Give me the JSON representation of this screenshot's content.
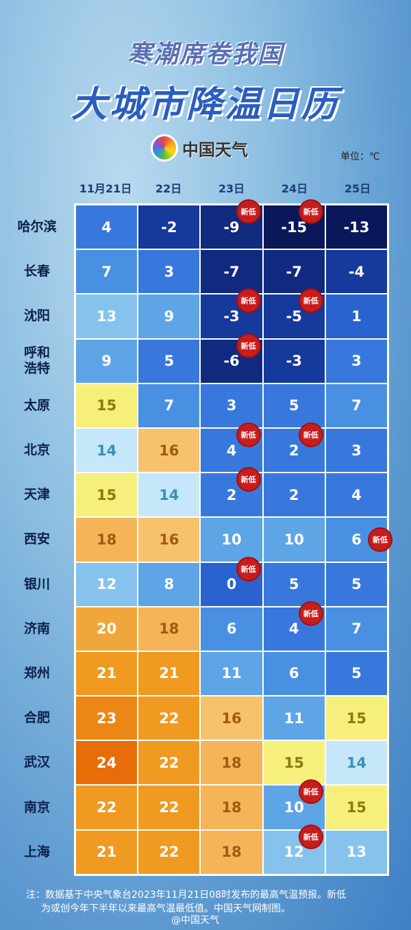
{
  "title_line1": "寒潮席卷我国",
  "title_line2": "大城市降温日历",
  "logo_text": "中国天气",
  "unit": "单位：℃",
  "dates": [
    "11月21日",
    "22日",
    "23日",
    "24日",
    "25日"
  ],
  "badge_label": "新低",
  "rows": [
    {
      "city": "哈尔滨",
      "temps": [
        4,
        -2,
        -9,
        -15,
        -13
      ],
      "new_low": [
        false,
        false,
        true,
        true,
        false
      ]
    },
    {
      "city": "长春",
      "temps": [
        7,
        3,
        -7,
        -7,
        -4
      ],
      "new_low": [
        false,
        false,
        false,
        false,
        false
      ]
    },
    {
      "city": "沈阳",
      "temps": [
        13,
        9,
        -3,
        -5,
        1
      ],
      "new_low": [
        false,
        false,
        true,
        true,
        false
      ]
    },
    {
      "city": "呼和浩特",
      "temps": [
        9,
        5,
        -6,
        -3,
        3
      ],
      "new_low": [
        false,
        false,
        true,
        false,
        false
      ]
    },
    {
      "city": "太原",
      "temps": [
        15,
        7,
        3,
        5,
        7
      ],
      "new_low": [
        false,
        false,
        false,
        false,
        false
      ]
    },
    {
      "city": "北京",
      "temps": [
        14,
        16,
        4,
        2,
        3
      ],
      "new_low": [
        false,
        false,
        true,
        true,
        false
      ]
    },
    {
      "city": "天津",
      "temps": [
        15,
        14,
        2,
        2,
        4
      ],
      "new_low": [
        false,
        false,
        true,
        false,
        false
      ]
    },
    {
      "city": "西安",
      "temps": [
        18,
        16,
        10,
        10,
        6
      ],
      "new_low": [
        false,
        false,
        false,
        false,
        true
      ]
    },
    {
      "city": "银川",
      "temps": [
        12,
        8,
        0,
        5,
        5
      ],
      "new_low": [
        false,
        false,
        true,
        false,
        false
      ]
    },
    {
      "city": "济南",
      "temps": [
        20,
        18,
        6,
        4,
        7
      ],
      "new_low": [
        false,
        false,
        false,
        true,
        false
      ]
    },
    {
      "city": "郑州",
      "temps": [
        21,
        21,
        11,
        6,
        5
      ],
      "new_low": [
        false,
        false,
        false,
        false,
        false
      ]
    },
    {
      "city": "合肥",
      "temps": [
        23,
        22,
        16,
        11,
        15
      ],
      "new_low": [
        false,
        false,
        false,
        false,
        false
      ]
    },
    {
      "city": "武汉",
      "temps": [
        24,
        22,
        18,
        15,
        14
      ],
      "new_low": [
        false,
        false,
        false,
        false,
        false
      ]
    },
    {
      "city": "南京",
      "temps": [
        22,
        22,
        18,
        10,
        15
      ],
      "new_low": [
        false,
        false,
        false,
        true,
        false
      ]
    },
    {
      "city": "上海",
      "temps": [
        21,
        22,
        18,
        12,
        13
      ],
      "new_low": [
        false,
        false,
        false,
        true,
        false
      ]
    }
  ],
  "note_line1": "注：数据基于中央气象台2023年11月21日08时发布的最高气温预报。新低",
  "note_line2": "为或创今年下半年以来最高气温最低值。中国天气网制图。",
  "weibo": "@中国天气",
  "colors": {
    "badge": "#c81d1d",
    "header": "#1b3d7a"
  }
}
